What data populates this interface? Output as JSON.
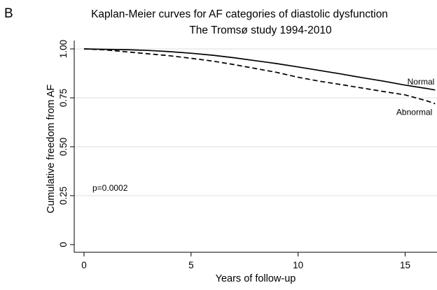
{
  "panel_label": "B",
  "chart_data": {
    "type": "line",
    "title": "Kaplan-Meier curves for AF categories of diastolic dysfunction",
    "subtitle": "The Tromsø study 1994-2010",
    "xlabel": "Years of follow-up",
    "ylabel": "Cumulative freedom from AF",
    "xlim": [
      0,
      16.5
    ],
    "ylim": [
      0,
      1.0
    ],
    "xticks": [
      0,
      5,
      10,
      15
    ],
    "xtick_labels": [
      "0",
      "5",
      "10",
      "15"
    ],
    "yticks": [
      0,
      0.25,
      0.5,
      0.75,
      1.0
    ],
    "ytick_labels": [
      "0",
      "0.25",
      "0.50",
      "0.75",
      "1.00"
    ],
    "grid": true,
    "legend": "none",
    "annotation": "p=0.0002",
    "series": [
      {
        "name": "Normal",
        "line_style": "solid",
        "color": "#000000",
        "x": [
          0,
          1,
          2,
          3,
          4,
          5,
          6,
          7,
          8,
          9,
          10,
          11,
          12,
          13,
          14,
          15,
          16,
          16.4
        ],
        "y": [
          1.0,
          0.998,
          0.996,
          0.992,
          0.986,
          0.978,
          0.968,
          0.955,
          0.94,
          0.925,
          0.908,
          0.89,
          0.872,
          0.853,
          0.835,
          0.815,
          0.798,
          0.79
        ]
      },
      {
        "name": "Abnormal",
        "line_style": "dashed",
        "color": "#000000",
        "x": [
          0,
          1,
          2,
          3,
          4,
          5,
          6,
          7,
          8,
          9,
          10,
          11,
          12,
          13,
          14,
          15,
          16,
          16.4
        ],
        "y": [
          1.0,
          0.995,
          0.985,
          0.975,
          0.965,
          0.952,
          0.938,
          0.92,
          0.9,
          0.88,
          0.855,
          0.835,
          0.818,
          0.8,
          0.782,
          0.765,
          0.735,
          0.72
        ]
      }
    ]
  }
}
